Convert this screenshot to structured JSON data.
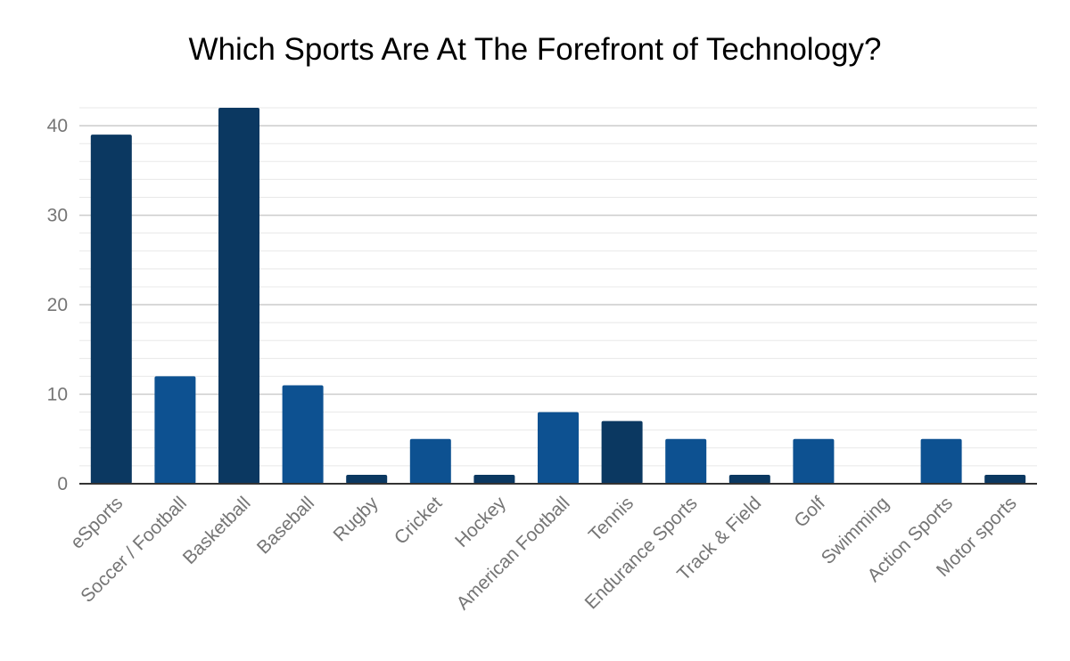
{
  "chart_data": {
    "type": "bar",
    "title": "Which Sports Are At The Forefront of Technology?",
    "xlabel": "",
    "ylabel": "",
    "categories": [
      "eSports",
      "Soccer / Football",
      "Basketball",
      "Baseball",
      "Rugby",
      "Cricket",
      "Hockey",
      "American Football",
      "Tennis",
      "Endurance Sports",
      "Track & Field",
      "Golf",
      "Swimming",
      "Action Sports",
      "Motor sports"
    ],
    "values": [
      39,
      12,
      42,
      11,
      1,
      5,
      1,
      8,
      7,
      5,
      1,
      5,
      0,
      5,
      1
    ],
    "bar_colors": [
      "#0b3861",
      "#0d5191",
      "#0b3861",
      "#0d5191",
      "#0b3861",
      "#0d5191",
      "#0b3861",
      "#0d5191",
      "#0b3861",
      "#0d5191",
      "#0b3861",
      "#0d5191",
      "#0b3861",
      "#0d5191",
      "#0b3861"
    ],
    "ylim": [
      0,
      42
    ],
    "yticks": [
      0,
      10,
      20,
      30,
      40
    ],
    "minor_grid_step": 2,
    "grid": true,
    "legend": "none"
  }
}
